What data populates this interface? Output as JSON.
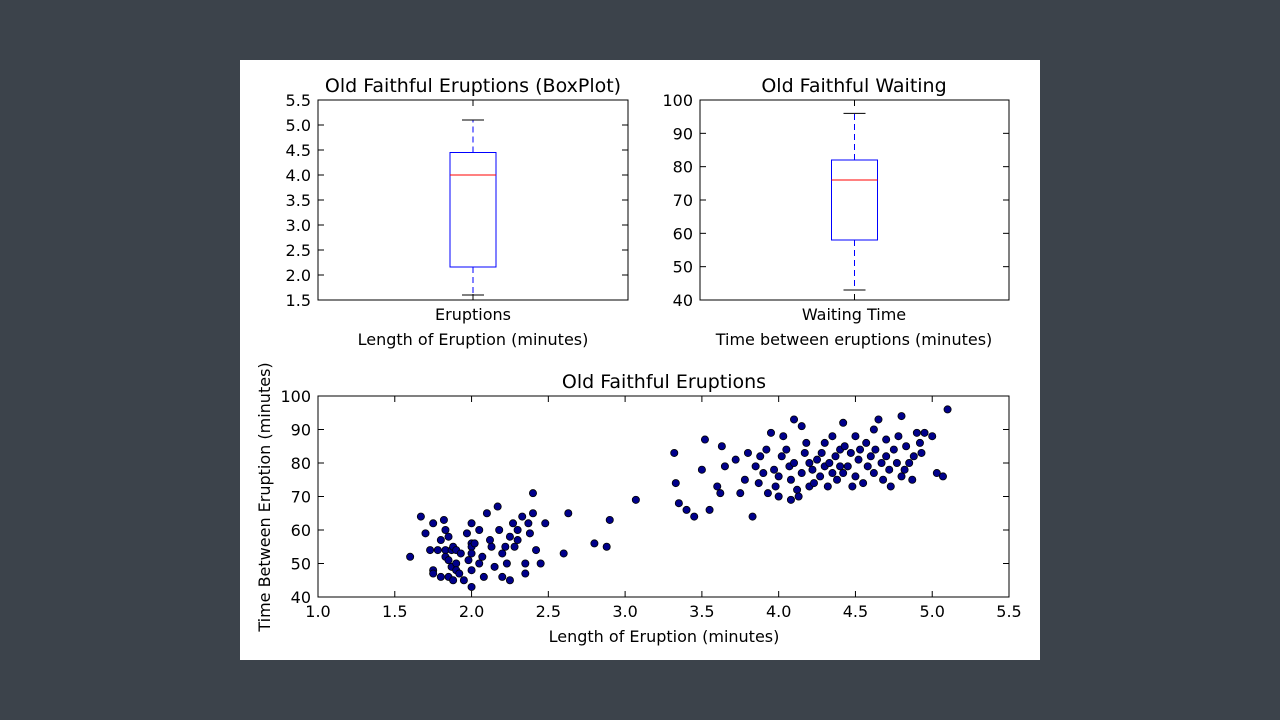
{
  "chart_data": [
    {
      "id": "eruption-box",
      "type": "box",
      "title": "Old Faithful Eruptions (BoxPlot)",
      "xlabel": "Length of Eruption (minutes)",
      "category": "Eruptions",
      "ylim": [
        1.5,
        5.5
      ],
      "yticks": [
        "1.5",
        "2.0",
        "2.5",
        "3.0",
        "3.5",
        "4.0",
        "4.5",
        "5.0",
        "5.5"
      ],
      "box": {
        "whisker_low": 1.6,
        "q1": 2.16,
        "median": 4.0,
        "q3": 4.45,
        "whisker_high": 5.1
      },
      "colors": {
        "box": "#0000ff",
        "median": "#ff0000",
        "caps": "#000000"
      }
    },
    {
      "id": "waiting-box",
      "type": "box",
      "title": "Old Faithful Waiting",
      "xlabel": "Time between eruptions (minutes)",
      "category": "Waiting Time",
      "ylim": [
        40,
        100
      ],
      "yticks": [
        "40",
        "50",
        "60",
        "70",
        "80",
        "90",
        "100"
      ],
      "box": {
        "whisker_low": 43,
        "q1": 58,
        "median": 76,
        "q3": 82,
        "whisker_high": 96
      },
      "colors": {
        "box": "#0000ff",
        "median": "#ff0000",
        "caps": "#000000"
      }
    },
    {
      "id": "eruption-scatter",
      "type": "scatter",
      "title": "Old Faithful Eruptions",
      "xlabel": "Length of Eruption (minutes)",
      "ylabel": "Time Between Eruption (minutes)",
      "xlim": [
        1.0,
        5.5
      ],
      "ylim": [
        40,
        100
      ],
      "xticks": [
        "1.0",
        "1.5",
        "2.0",
        "2.5",
        "3.0",
        "3.5",
        "4.0",
        "4.5",
        "5.0",
        "5.5"
      ],
      "yticks": [
        "40",
        "50",
        "60",
        "70",
        "80",
        "90",
        "100"
      ],
      "colors": {
        "point": "#00008b",
        "edge": "#000000"
      },
      "points": [
        [
          1.6,
          52
        ],
        [
          1.67,
          64
        ],
        [
          1.7,
          59
        ],
        [
          1.73,
          54
        ],
        [
          1.75,
          48
        ],
        [
          1.75,
          47
        ],
        [
          1.75,
          62
        ],
        [
          1.78,
          54
        ],
        [
          1.8,
          57
        ],
        [
          1.8,
          46
        ],
        [
          1.82,
          63
        ],
        [
          1.83,
          60
        ],
        [
          1.83,
          54
        ],
        [
          1.83,
          52
        ],
        [
          1.85,
          58
        ],
        [
          1.85,
          51
        ],
        [
          1.85,
          46
        ],
        [
          1.87,
          54
        ],
        [
          1.87,
          49
        ],
        [
          1.88,
          55
        ],
        [
          1.88,
          45
        ],
        [
          1.9,
          54
        ],
        [
          1.9,
          50
        ],
        [
          1.9,
          48
        ],
        [
          1.92,
          47
        ],
        [
          1.93,
          53
        ],
        [
          1.95,
          45
        ],
        [
          1.97,
          59
        ],
        [
          1.98,
          51
        ],
        [
          2.0,
          62
        ],
        [
          2.0,
          56
        ],
        [
          2.0,
          55
        ],
        [
          2.0,
          53
        ],
        [
          2.0,
          48
        ],
        [
          2.0,
          43
        ],
        [
          2.02,
          56
        ],
        [
          2.05,
          50
        ],
        [
          2.05,
          60
        ],
        [
          2.07,
          52
        ],
        [
          2.08,
          46
        ],
        [
          2.1,
          65
        ],
        [
          2.12,
          57
        ],
        [
          2.13,
          55
        ],
        [
          2.15,
          49
        ],
        [
          2.17,
          67
        ],
        [
          2.18,
          60
        ],
        [
          2.2,
          53
        ],
        [
          2.2,
          46
        ],
        [
          2.22,
          55
        ],
        [
          2.23,
          50
        ],
        [
          2.25,
          58
        ],
        [
          2.25,
          45
        ],
        [
          2.27,
          62
        ],
        [
          2.28,
          55
        ],
        [
          2.3,
          60
        ],
        [
          2.3,
          57
        ],
        [
          2.33,
          64
        ],
        [
          2.35,
          50
        ],
        [
          2.35,
          47
        ],
        [
          2.37,
          62
        ],
        [
          2.38,
          59
        ],
        [
          2.4,
          71
        ],
        [
          2.4,
          65
        ],
        [
          2.42,
          54
        ],
        [
          2.45,
          50
        ],
        [
          2.48,
          62
        ],
        [
          2.6,
          53
        ],
        [
          2.63,
          65
        ],
        [
          2.8,
          56
        ],
        [
          2.88,
          55
        ],
        [
          2.9,
          63
        ],
        [
          3.07,
          69
        ],
        [
          3.32,
          83
        ],
        [
          3.33,
          74
        ],
        [
          3.35,
          68
        ],
        [
          3.4,
          66
        ],
        [
          3.45,
          64
        ],
        [
          3.5,
          78
        ],
        [
          3.52,
          87
        ],
        [
          3.55,
          66
        ],
        [
          3.6,
          73
        ],
        [
          3.62,
          71
        ],
        [
          3.63,
          85
        ],
        [
          3.65,
          79
        ],
        [
          3.72,
          81
        ],
        [
          3.75,
          71
        ],
        [
          3.78,
          75
        ],
        [
          3.8,
          83
        ],
        [
          3.83,
          64
        ],
        [
          3.85,
          79
        ],
        [
          3.87,
          74
        ],
        [
          3.88,
          82
        ],
        [
          3.9,
          77
        ],
        [
          3.92,
          84
        ],
        [
          3.93,
          71
        ],
        [
          3.95,
          89
        ],
        [
          3.97,
          78
        ],
        [
          3.98,
          73
        ],
        [
          4.0,
          70
        ],
        [
          4.0,
          76
        ],
        [
          4.02,
          82
        ],
        [
          4.03,
          88
        ],
        [
          4.05,
          84
        ],
        [
          4.07,
          79
        ],
        [
          4.08,
          75
        ],
        [
          4.08,
          69
        ],
        [
          4.1,
          93
        ],
        [
          4.1,
          80
        ],
        [
          4.12,
          72
        ],
        [
          4.13,
          70
        ],
        [
          4.15,
          91
        ],
        [
          4.15,
          77
        ],
        [
          4.17,
          83
        ],
        [
          4.18,
          86
        ],
        [
          4.2,
          80
        ],
        [
          4.2,
          73
        ],
        [
          4.22,
          78
        ],
        [
          4.23,
          74
        ],
        [
          4.25,
          81
        ],
        [
          4.27,
          76
        ],
        [
          4.28,
          83
        ],
        [
          4.3,
          79
        ],
        [
          4.3,
          86
        ],
        [
          4.32,
          73
        ],
        [
          4.33,
          80
        ],
        [
          4.35,
          88
        ],
        [
          4.35,
          77
        ],
        [
          4.37,
          82
        ],
        [
          4.38,
          75
        ],
        [
          4.4,
          84
        ],
        [
          4.4,
          79
        ],
        [
          4.42,
          92
        ],
        [
          4.42,
          77
        ],
        [
          4.43,
          85
        ],
        [
          4.45,
          79
        ],
        [
          4.47,
          83
        ],
        [
          4.48,
          73
        ],
        [
          4.5,
          88
        ],
        [
          4.5,
          76
        ],
        [
          4.52,
          81
        ],
        [
          4.53,
          84
        ],
        [
          4.55,
          74
        ],
        [
          4.57,
          86
        ],
        [
          4.58,
          79
        ],
        [
          4.6,
          82
        ],
        [
          4.62,
          90
        ],
        [
          4.62,
          77
        ],
        [
          4.63,
          84
        ],
        [
          4.65,
          93
        ],
        [
          4.67,
          80
        ],
        [
          4.68,
          75
        ],
        [
          4.7,
          87
        ],
        [
          4.7,
          82
        ],
        [
          4.72,
          78
        ],
        [
          4.73,
          73
        ],
        [
          4.75,
          84
        ],
        [
          4.77,
          80
        ],
        [
          4.78,
          88
        ],
        [
          4.8,
          94
        ],
        [
          4.8,
          76
        ],
        [
          4.82,
          78
        ],
        [
          4.83,
          85
        ],
        [
          4.85,
          80
        ],
        [
          4.87,
          75
        ],
        [
          4.88,
          82
        ],
        [
          4.9,
          89
        ],
        [
          4.92,
          86
        ],
        [
          4.93,
          83
        ],
        [
          4.95,
          89
        ],
        [
          5.0,
          88
        ],
        [
          5.03,
          77
        ],
        [
          5.07,
          76
        ],
        [
          5.1,
          96
        ]
      ]
    }
  ]
}
